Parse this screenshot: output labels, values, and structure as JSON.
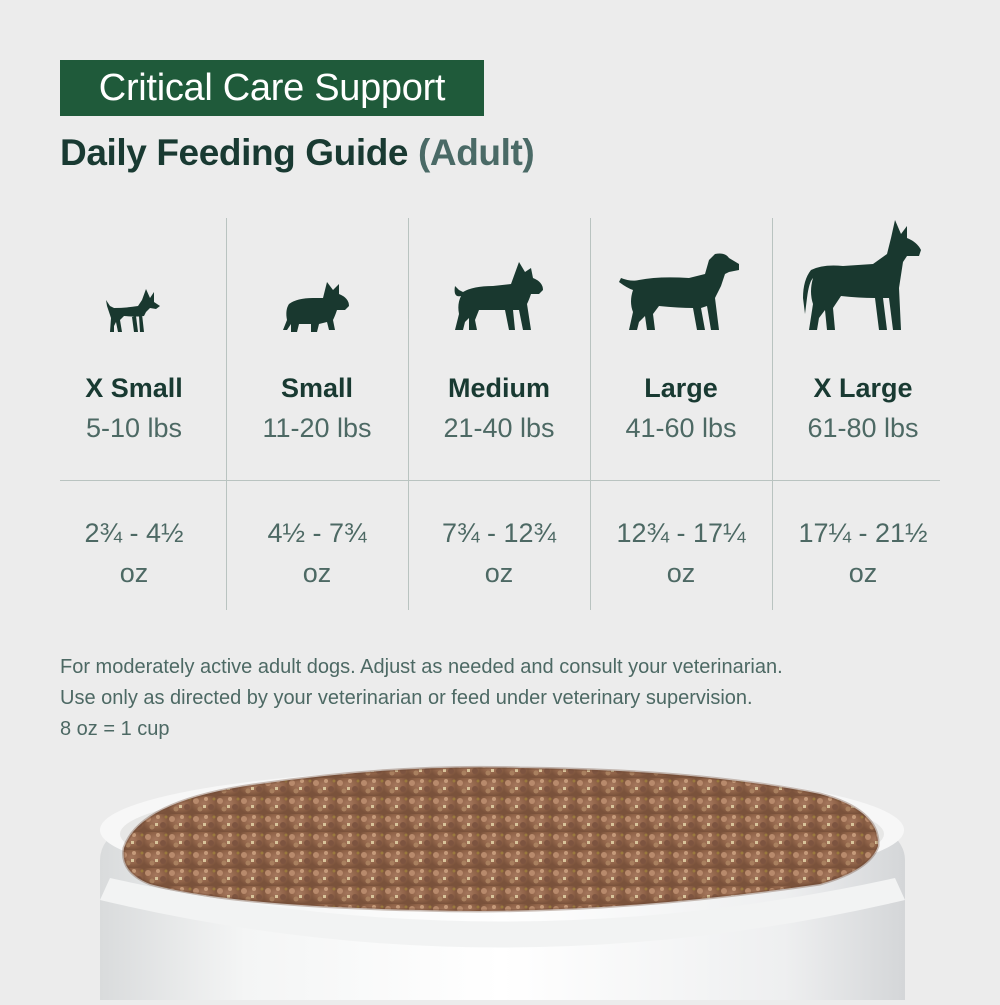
{
  "header": {
    "badge": "Critical Care Support",
    "title": "Daily Feeding Guide",
    "subtitle": "(Adult)"
  },
  "sizes": [
    {
      "name": "X Small",
      "weight": "5-10 lbs",
      "amount_line1": "2¾ - 4½",
      "amount_line2": "oz",
      "icon": "chihuahua-icon"
    },
    {
      "name": "Small",
      "weight": "11-20 lbs",
      "amount_line1": "4½ - 7¾",
      "amount_line2": "oz",
      "icon": "french-bulldog-icon"
    },
    {
      "name": "Medium",
      "weight": "21-40 lbs",
      "amount_line1": "7¾ - 12¾",
      "amount_line2": "oz",
      "icon": "pitbull-icon"
    },
    {
      "name": "Large",
      "weight": "41-60 lbs",
      "amount_line1": "12¾ - 17¼",
      "amount_line2": "oz",
      "icon": "labrador-icon"
    },
    {
      "name": "X Large",
      "weight": "61-80 lbs",
      "amount_line1": "17¼ - 21½",
      "amount_line2": "oz",
      "icon": "great-dane-icon"
    }
  ],
  "notes": {
    "line1": "For moderately active adult dogs. Adjust as needed and consult your veterinarian.",
    "line2": "Use only as directed by your veterinarian or feed under veterinary supervision.",
    "line3": "8 oz = 1 cup"
  },
  "colors": {
    "badge_bg": "#1f5a3a",
    "title": "#193a32",
    "text_muted": "#4d6964",
    "background": "#ececec"
  }
}
